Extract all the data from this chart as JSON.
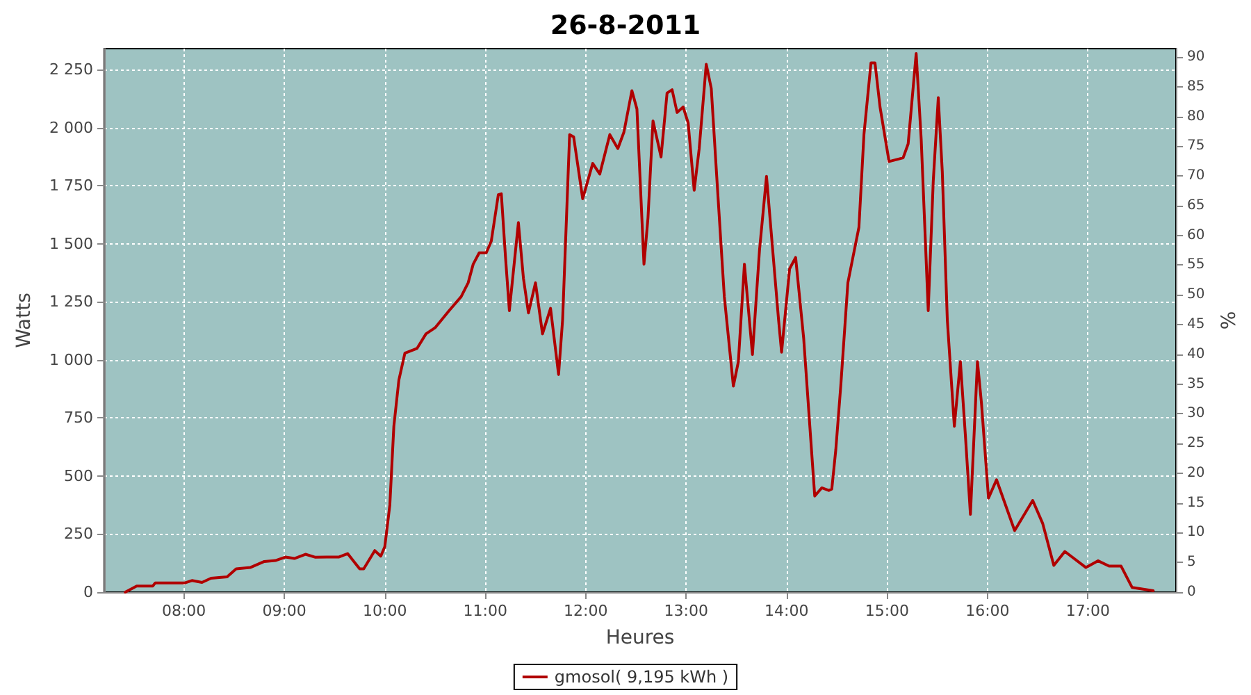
{
  "chart_data": {
    "type": "line",
    "title": "26-8-2011",
    "xlabel": "Heures",
    "ylabel": "Watts",
    "y2label": "%",
    "xlim": [
      7.207,
      17.876
    ],
    "xticks": [
      {
        "value": 8,
        "label": "08:00"
      },
      {
        "value": 9,
        "label": "09:00"
      },
      {
        "value": 10,
        "label": "10:00"
      },
      {
        "value": 11,
        "label": "11:00"
      },
      {
        "value": 12,
        "label": "12:00"
      },
      {
        "value": 13,
        "label": "13:00"
      },
      {
        "value": 14,
        "label": "14:00"
      },
      {
        "value": 15,
        "label": "15:00"
      },
      {
        "value": 16,
        "label": "16:00"
      },
      {
        "value": 17,
        "label": "17:00"
      }
    ],
    "ylim": [
      0,
      2340
    ],
    "yticks": [
      0,
      250,
      500,
      750,
      {
        "value": 1000,
        "label": "1 000"
      },
      {
        "value": 1250,
        "label": "1 250"
      },
      {
        "value": 1500,
        "label": "1 500"
      },
      {
        "value": 1750,
        "label": "1 750"
      },
      {
        "value": 2000,
        "label": "2 000"
      },
      {
        "value": 2250,
        "label": "2 250"
      }
    ],
    "y2lim": [
      0,
      91.4
    ],
    "y2ticks": [
      0,
      5,
      10,
      15,
      20,
      25,
      30,
      35,
      40,
      45,
      50,
      55,
      60,
      65,
      70,
      75,
      80,
      85,
      90
    ],
    "grid": true,
    "legend": "bottom",
    "marker": "none",
    "line_style": "solid",
    "series": [
      {
        "name": "gmosol( 9,195 kWh )",
        "color": "#b00000",
        "x": [
          7.416,
          7.53,
          7.69,
          7.715,
          8.01,
          8.08,
          8.18,
          8.27,
          8.43,
          8.52,
          8.66,
          8.8,
          8.91,
          9.01,
          9.1,
          9.21,
          9.31,
          9.42,
          9.54,
          9.63,
          9.75,
          9.79,
          9.9,
          9.96,
          10.0,
          10.05,
          10.09,
          10.14,
          10.2,
          10.32,
          10.41,
          10.5,
          10.64,
          10.76,
          10.83,
          10.88,
          10.94,
          11.01,
          11.06,
          11.13,
          11.16,
          11.2,
          11.24,
          11.33,
          11.38,
          11.43,
          11.5,
          11.57,
          11.65,
          11.73,
          11.77,
          11.84,
          11.88,
          11.97,
          12.07,
          12.14,
          12.24,
          12.32,
          12.38,
          12.46,
          12.51,
          12.58,
          12.62,
          12.67,
          12.75,
          12.81,
          12.86,
          12.91,
          12.97,
          13.02,
          13.08,
          13.13,
          13.2,
          13.25,
          13.31,
          13.38,
          13.47,
          13.52,
          13.58,
          13.66,
          13.73,
          13.8,
          13.92,
          13.95,
          14.03,
          14.09,
          14.17,
          14.28,
          14.35,
          14.42,
          14.45,
          14.49,
          14.54,
          14.61,
          14.66,
          14.72,
          14.77,
          14.84,
          14.88,
          14.93,
          15.02,
          15.16,
          15.21,
          15.29,
          15.34,
          15.41,
          15.46,
          15.51,
          15.55,
          15.6,
          15.67,
          15.73,
          15.78,
          15.83,
          15.9,
          15.94,
          16.01,
          16.09,
          16.27,
          16.45,
          16.55,
          16.66,
          16.77,
          16.98,
          17.1,
          17.21,
          17.33,
          17.44,
          17.65
        ],
        "values": [
          0,
          26,
          26,
          40,
          40,
          50,
          42,
          60,
          66,
          100,
          106,
          132,
          136,
          151,
          145,
          163,
          150,
          151,
          151,
          166,
          100,
          100,
          179,
          155,
          196,
          375,
          714,
          913,
          1029,
          1049,
          1112,
          1138,
          1212,
          1272,
          1332,
          1412,
          1461,
          1461,
          1511,
          1711,
          1715,
          1452,
          1212,
          1591,
          1352,
          1202,
          1332,
          1112,
          1222,
          937,
          1172,
          1970,
          1960,
          1694,
          1846,
          1800,
          1970,
          1910,
          1980,
          2159,
          2080,
          1412,
          1611,
          2029,
          1874,
          2149,
          2163,
          2065,
          2089,
          2020,
          1730,
          1910,
          2273,
          2169,
          1751,
          1272,
          887,
          993,
          1412,
          1023,
          1471,
          1790,
          1172,
          1033,
          1392,
          1441,
          1093,
          414,
          449,
          438,
          444,
          614,
          893,
          1332,
          1441,
          1571,
          1970,
          2279,
          2279,
          2089,
          1854,
          1870,
          1930,
          2319,
          1950,
          1212,
          1770,
          2129,
          1810,
          1172,
          714,
          993,
          674,
          335,
          993,
          813,
          405,
          484,
          265,
          395,
          295,
          115,
          175,
          106,
          135,
          112,
          112,
          20,
          6
        ]
      }
    ]
  }
}
